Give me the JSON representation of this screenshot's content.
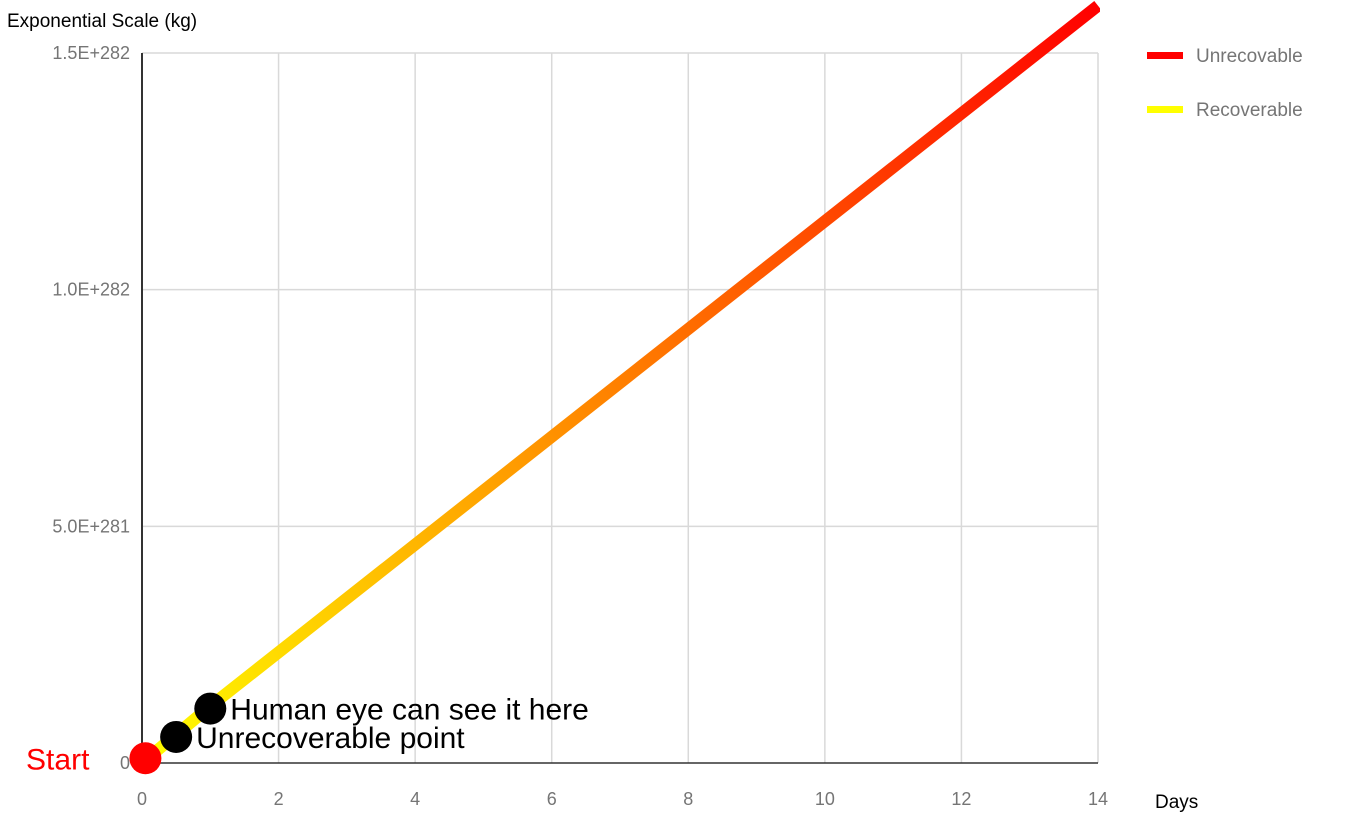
{
  "chart_data": {
    "type": "line",
    "title": "",
    "xlabel": "Days",
    "ylabel": "Exponential Scale (kg)",
    "xlim": [
      0,
      14
    ],
    "ylim": [
      0,
      1.5e+282
    ],
    "x_ticks": [
      {
        "value": 0,
        "label": "0"
      },
      {
        "value": 2,
        "label": "2"
      },
      {
        "value": 4,
        "label": "4"
      },
      {
        "value": 6,
        "label": "6"
      },
      {
        "value": 8,
        "label": "8"
      },
      {
        "value": 10,
        "label": "10"
      },
      {
        "value": 12,
        "label": "12"
      },
      {
        "value": 14,
        "label": "14"
      }
    ],
    "y_ticks": [
      {
        "value": 0,
        "label": "0"
      },
      {
        "value": 5e+281,
        "label": "5.0E+281"
      },
      {
        "value": 1e+282,
        "label": "1.0E+282"
      },
      {
        "value": 1.5e+282,
        "label": "1.5E+282"
      }
    ],
    "grid": true,
    "legend_position": "top-right",
    "series": [
      {
        "name": "Unrecovable",
        "color": "#ff0000",
        "gradient_to": "#ffff00",
        "x": [
          0,
          1,
          14
        ],
        "y": [
          0,
          1.2e+281,
          1.6e+282
        ]
      }
    ],
    "legend": [
      {
        "label": "Unrecovable",
        "color": "#ff0000"
      },
      {
        "label": "Recoverable",
        "color": "#ffff00"
      }
    ],
    "markers": [
      {
        "name": "start",
        "x": 0.05,
        "y": 1e+280,
        "color": "#ff0000",
        "label": "Start",
        "label_color": "#ff0000",
        "label_side": "left"
      },
      {
        "name": "unrecoverable-point",
        "x": 0.5,
        "y": 5.5e+280,
        "color": "#000000",
        "label": "Unrecoverable point",
        "label_color": "#000000",
        "label_side": "right"
      },
      {
        "name": "human-eye",
        "x": 1.0,
        "y": 1.15e+281,
        "color": "#000000",
        "label": "Human eye can see it here",
        "label_color": "#000000",
        "label_side": "right"
      }
    ]
  }
}
